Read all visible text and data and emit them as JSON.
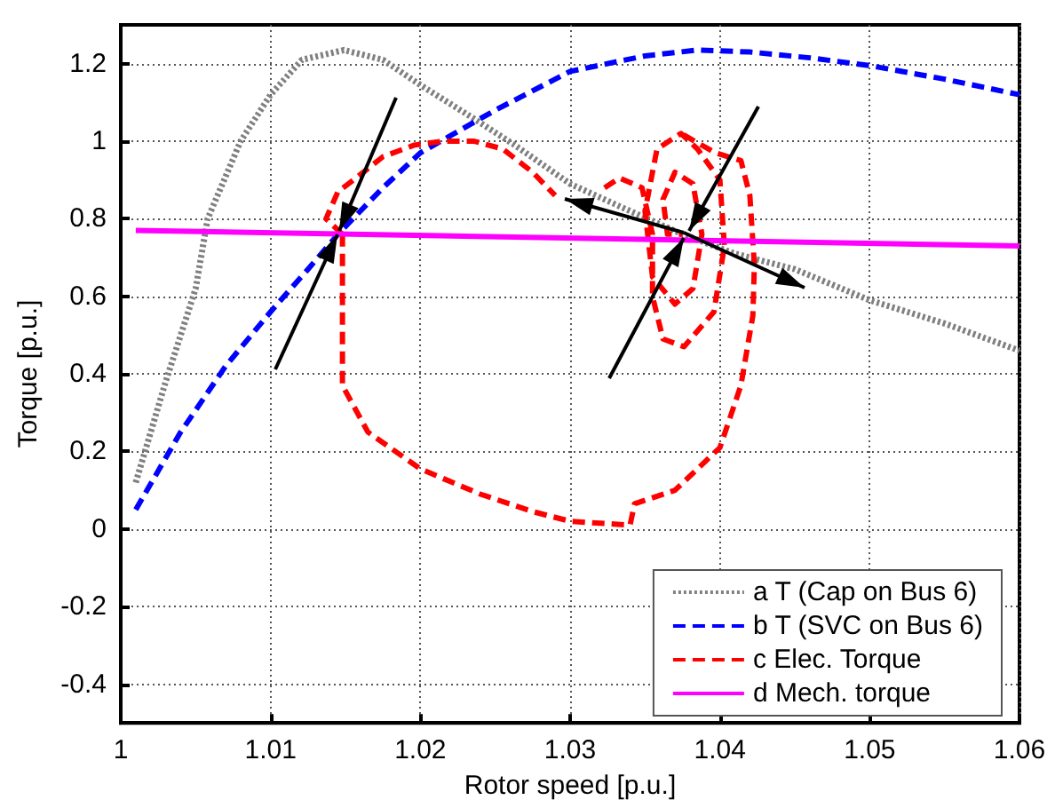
{
  "chart_data": {
    "type": "line",
    "xlabel": "Rotor speed [p.u.]",
    "ylabel": "Torque [p.u.]",
    "xlim": [
      1,
      1.06
    ],
    "xticks": [
      1,
      1.01,
      1.02,
      1.03,
      1.04,
      1.05,
      1.06
    ],
    "ylim": [
      -0.5,
      1.3
    ],
    "yticks": [
      -0.4,
      -0.2,
      0,
      0.2,
      0.4,
      0.6,
      0.8,
      1,
      1.2
    ],
    "grid": true,
    "legend": "bottom right",
    "marker": "none",
    "series": [
      {
        "name": "a T (Cap on Bus 6)",
        "color": "#808080",
        "line_style": "dotted",
        "x": [
          1.001,
          1.003,
          1.005,
          1.0058,
          1.008,
          1.01,
          1.0121,
          1.0149,
          1.0175,
          1.02,
          1.0235,
          1.0263,
          1.03,
          1.034,
          1.0375,
          1.041,
          1.045,
          1.05,
          1.055,
          1.06
        ],
        "values": [
          0.12,
          0.38,
          0.62,
          0.8,
          1.0,
          1.12,
          1.21,
          1.235,
          1.21,
          1.145,
          1.06,
          0.99,
          0.89,
          0.82,
          0.76,
          0.71,
          0.67,
          0.59,
          0.53,
          0.46
        ]
      },
      {
        "name": "b T (SVC on Bus 6)",
        "color": "#0000ff",
        "line_style": "dashed",
        "x": [
          1.001,
          1.004,
          1.007,
          1.01,
          1.0125,
          1.0145,
          1.0175,
          1.02,
          1.025,
          1.03,
          1.035,
          1.0385,
          1.042,
          1.046,
          1.05,
          1.055,
          1.06
        ],
        "values": [
          0.05,
          0.25,
          0.42,
          0.56,
          0.67,
          0.76,
          0.88,
          0.97,
          1.08,
          1.18,
          1.22,
          1.235,
          1.23,
          1.215,
          1.195,
          1.16,
          1.12
        ]
      },
      {
        "name": "c Elec. Torque",
        "color": "#ff0000",
        "line_style": "dashed",
        "x": [
          1.0148,
          1.0137,
          1.0145,
          1.0157,
          1.0175,
          1.0196,
          1.0215,
          1.0236,
          1.0255,
          1.0275,
          1.029,
          null,
          1.0323,
          1.0333,
          1.0348,
          1.0355,
          1.0355,
          1.0362,
          1.0376,
          1.0396,
          1.0403,
          1.04,
          1.0385,
          1.0374,
          1.0358,
          1.035,
          1.0355,
          1.037,
          1.0382,
          1.0388,
          1.0382,
          1.037,
          1.0362,
          1.0365,
          1.0375,
          null,
          1.0148,
          1.0148,
          1.0148,
          1.0165,
          1.02,
          1.024,
          1.0275,
          1.03,
          1.034,
          1.0343,
          1.037,
          1.04,
          1.0414,
          1.0422,
          1.0423,
          1.042,
          1.0414,
          1.0397,
          1.0374
        ],
        "values": [
          0.76,
          0.8,
          0.87,
          0.905,
          0.96,
          0.99,
          1.0,
          1.0,
          0.98,
          0.92,
          0.86,
          null,
          0.88,
          0.905,
          0.88,
          0.76,
          0.6,
          0.49,
          0.47,
          0.56,
          0.73,
          0.9,
          0.98,
          1.02,
          0.98,
          0.82,
          0.65,
          0.58,
          0.62,
          0.76,
          0.89,
          0.92,
          0.85,
          0.76,
          0.76,
          null,
          0.76,
          0.45,
          0.37,
          0.25,
          0.155,
          0.09,
          0.045,
          0.02,
          0.01,
          0.065,
          0.1,
          0.21,
          0.37,
          0.55,
          0.68,
          0.86,
          0.95,
          0.97,
          1.02
        ]
      },
      {
        "name": "d Mech. torque",
        "color": "#ff00ff",
        "line_style": "solid",
        "x": [
          1.001,
          1.06
        ],
        "values": [
          0.77,
          0.73
        ]
      }
    ]
  }
}
